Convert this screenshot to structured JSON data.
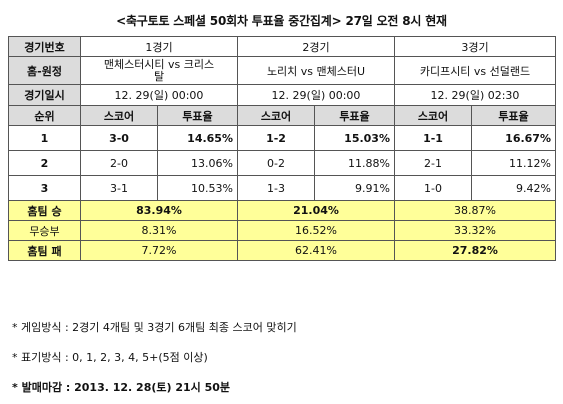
{
  "title": "<축구토토 스페셜 50회차 투표율 중간집계> 27일 오전 8시 현재",
  "table": {
    "labels": {
      "game_no": "경기번호",
      "home_away": "홈-원정",
      "datetime": "경기일시",
      "rank": "순위",
      "score": "스코어",
      "vote_rate": "투표율"
    },
    "games": [
      {
        "no": "1경기",
        "teams": "맨체스터시티 vs 크리스탈",
        "datetime": "12. 29(일) 00:00"
      },
      {
        "no": "2경기",
        "teams": "노리치 vs 맨체스터U",
        "datetime": "12. 29(일) 00:00"
      },
      {
        "no": "3경기",
        "teams": "카디프시티 vs 선덜랜드",
        "datetime": "12. 29(일) 02:30"
      }
    ],
    "rank_rows": [
      {
        "rank": "1",
        "cells": [
          {
            "score": "3-0",
            "rate": "14.65%"
          },
          {
            "score": "1-2",
            "rate": "15.03%"
          },
          {
            "score": "1-1",
            "rate": "16.67%"
          }
        ]
      },
      {
        "rank": "2",
        "cells": [
          {
            "score": "2-0",
            "rate": "13.06%"
          },
          {
            "score": "0-2",
            "rate": "11.88%"
          },
          {
            "score": "2-1",
            "rate": "11.12%"
          }
        ]
      },
      {
        "rank": "3",
        "cells": [
          {
            "score": "3-1",
            "rate": "10.53%"
          },
          {
            "score": "1-3",
            "rate": "9.91%"
          },
          {
            "score": "1-0",
            "rate": "9.42%"
          }
        ]
      }
    ],
    "outcome_rows": [
      {
        "label": "홈팀 승",
        "values": [
          "83.94%",
          "21.04%",
          "38.87%"
        ]
      },
      {
        "label": "무승부",
        "values": [
          "8.31%",
          "16.52%",
          "33.32%"
        ]
      },
      {
        "label": "홈팀 패",
        "values": [
          "7.72%",
          "62.41%",
          "27.82%"
        ]
      }
    ]
  },
  "notes": {
    "game_method": "* 게임방식 : 2경기 4개팀 및 3경기 6개팀 최종 스코어 맞히기",
    "notation": "* 표기방식 : 0, 1, 2, 3, 4, 5+(5점 이상)",
    "deadline": "* 발매마감 : 2013. 12. 28(토) 21시 50분"
  },
  "colors": {
    "header_bg": "#dcdcdc",
    "highlight_bg": "#ffff99",
    "border": "#555555"
  }
}
